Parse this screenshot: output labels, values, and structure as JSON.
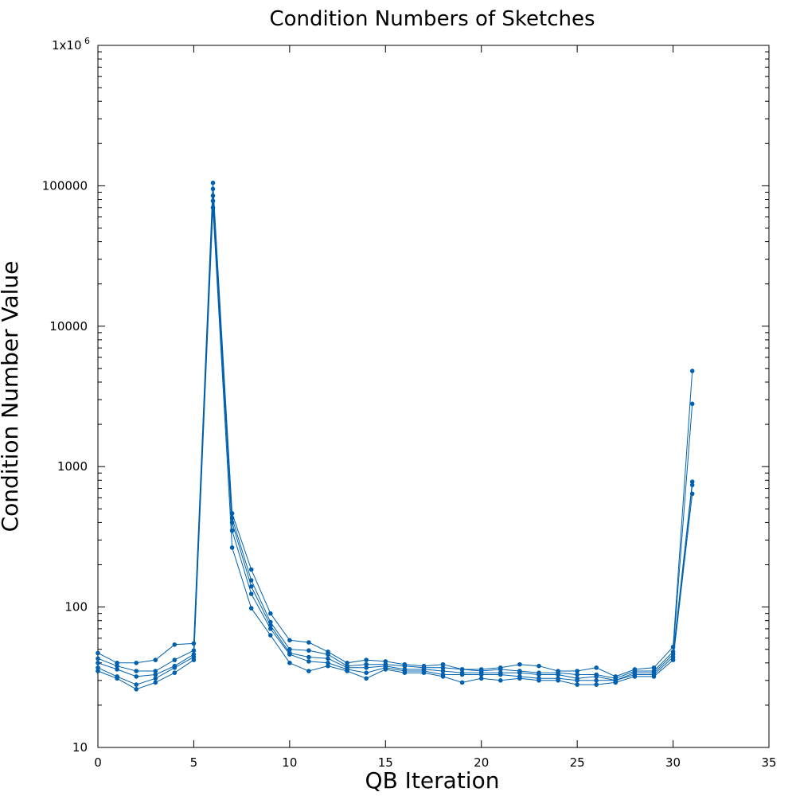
{
  "chart_data": {
    "type": "line",
    "title": "Condition Numbers of Sketches",
    "xlabel": "QB Iteration",
    "ylabel": "Condition Number Value",
    "xlim": [
      0,
      35
    ],
    "ylim": [
      10,
      1000000
    ],
    "yscale": "log",
    "grid": false,
    "legend": "none",
    "color": "#0060ad",
    "xticks": [
      0,
      5,
      10,
      15,
      20,
      25,
      30,
      35
    ],
    "xtick_labels": [
      "0",
      "5",
      "10",
      "15",
      "20",
      "25",
      "30",
      "35"
    ],
    "yticks": [
      10,
      100,
      1000,
      10000,
      100000,
      1000000
    ],
    "ytick_labels": [
      "10",
      "100",
      "1000",
      "10000",
      "100000",
      "1x10^6"
    ],
    "x": [
      0,
      1,
      2,
      3,
      4,
      5,
      6,
      7,
      8,
      9,
      10,
      11,
      12,
      13,
      14,
      15,
      16,
      17,
      18,
      19,
      20,
      21,
      22,
      23,
      24,
      25,
      26,
      27,
      28,
      29,
      30,
      31
    ],
    "series": [
      {
        "values": [
          47,
          40,
          40,
          42,
          54,
          55,
          105000,
          465,
          185,
          90,
          58,
          56,
          48,
          40,
          42,
          41,
          39,
          38,
          39,
          36,
          36,
          37,
          39,
          38,
          35,
          35,
          37,
          32,
          36,
          37,
          52,
          4800
        ]
      },
      {
        "values": [
          43,
          38,
          35,
          35,
          42,
          49,
          95000,
          430,
          155,
          78,
          50,
          49,
          46,
          38,
          39,
          39,
          38,
          37,
          37,
          36,
          35,
          36,
          35,
          34,
          34,
          33,
          33,
          31,
          35,
          35,
          48,
          2800
        ]
      },
      {
        "values": [
          40,
          36,
          32,
          33,
          38,
          46,
          85000,
          400,
          140,
          74,
          47,
          44,
          43,
          37,
          37,
          38,
          36,
          36,
          35,
          34,
          34,
          34,
          34,
          33,
          33,
          31,
          32,
          30,
          34,
          34,
          46,
          780
        ]
      },
      {
        "values": [
          37,
          32,
          28,
          31,
          37,
          44,
          78000,
          350,
          124,
          70,
          46,
          41,
          40,
          36,
          34,
          37,
          35,
          35,
          33,
          33,
          33,
          33,
          32,
          31,
          31,
          30,
          30,
          30,
          33,
          33,
          44,
          740
        ]
      },
      {
        "values": [
          35,
          31,
          26,
          29,
          34,
          42,
          70000,
          265,
          98,
          63,
          40,
          35,
          38,
          35,
          31,
          36,
          34,
          34,
          32,
          29,
          31,
          30,
          31,
          30,
          30,
          28,
          28,
          29,
          32,
          32,
          42,
          640
        ]
      }
    ]
  }
}
